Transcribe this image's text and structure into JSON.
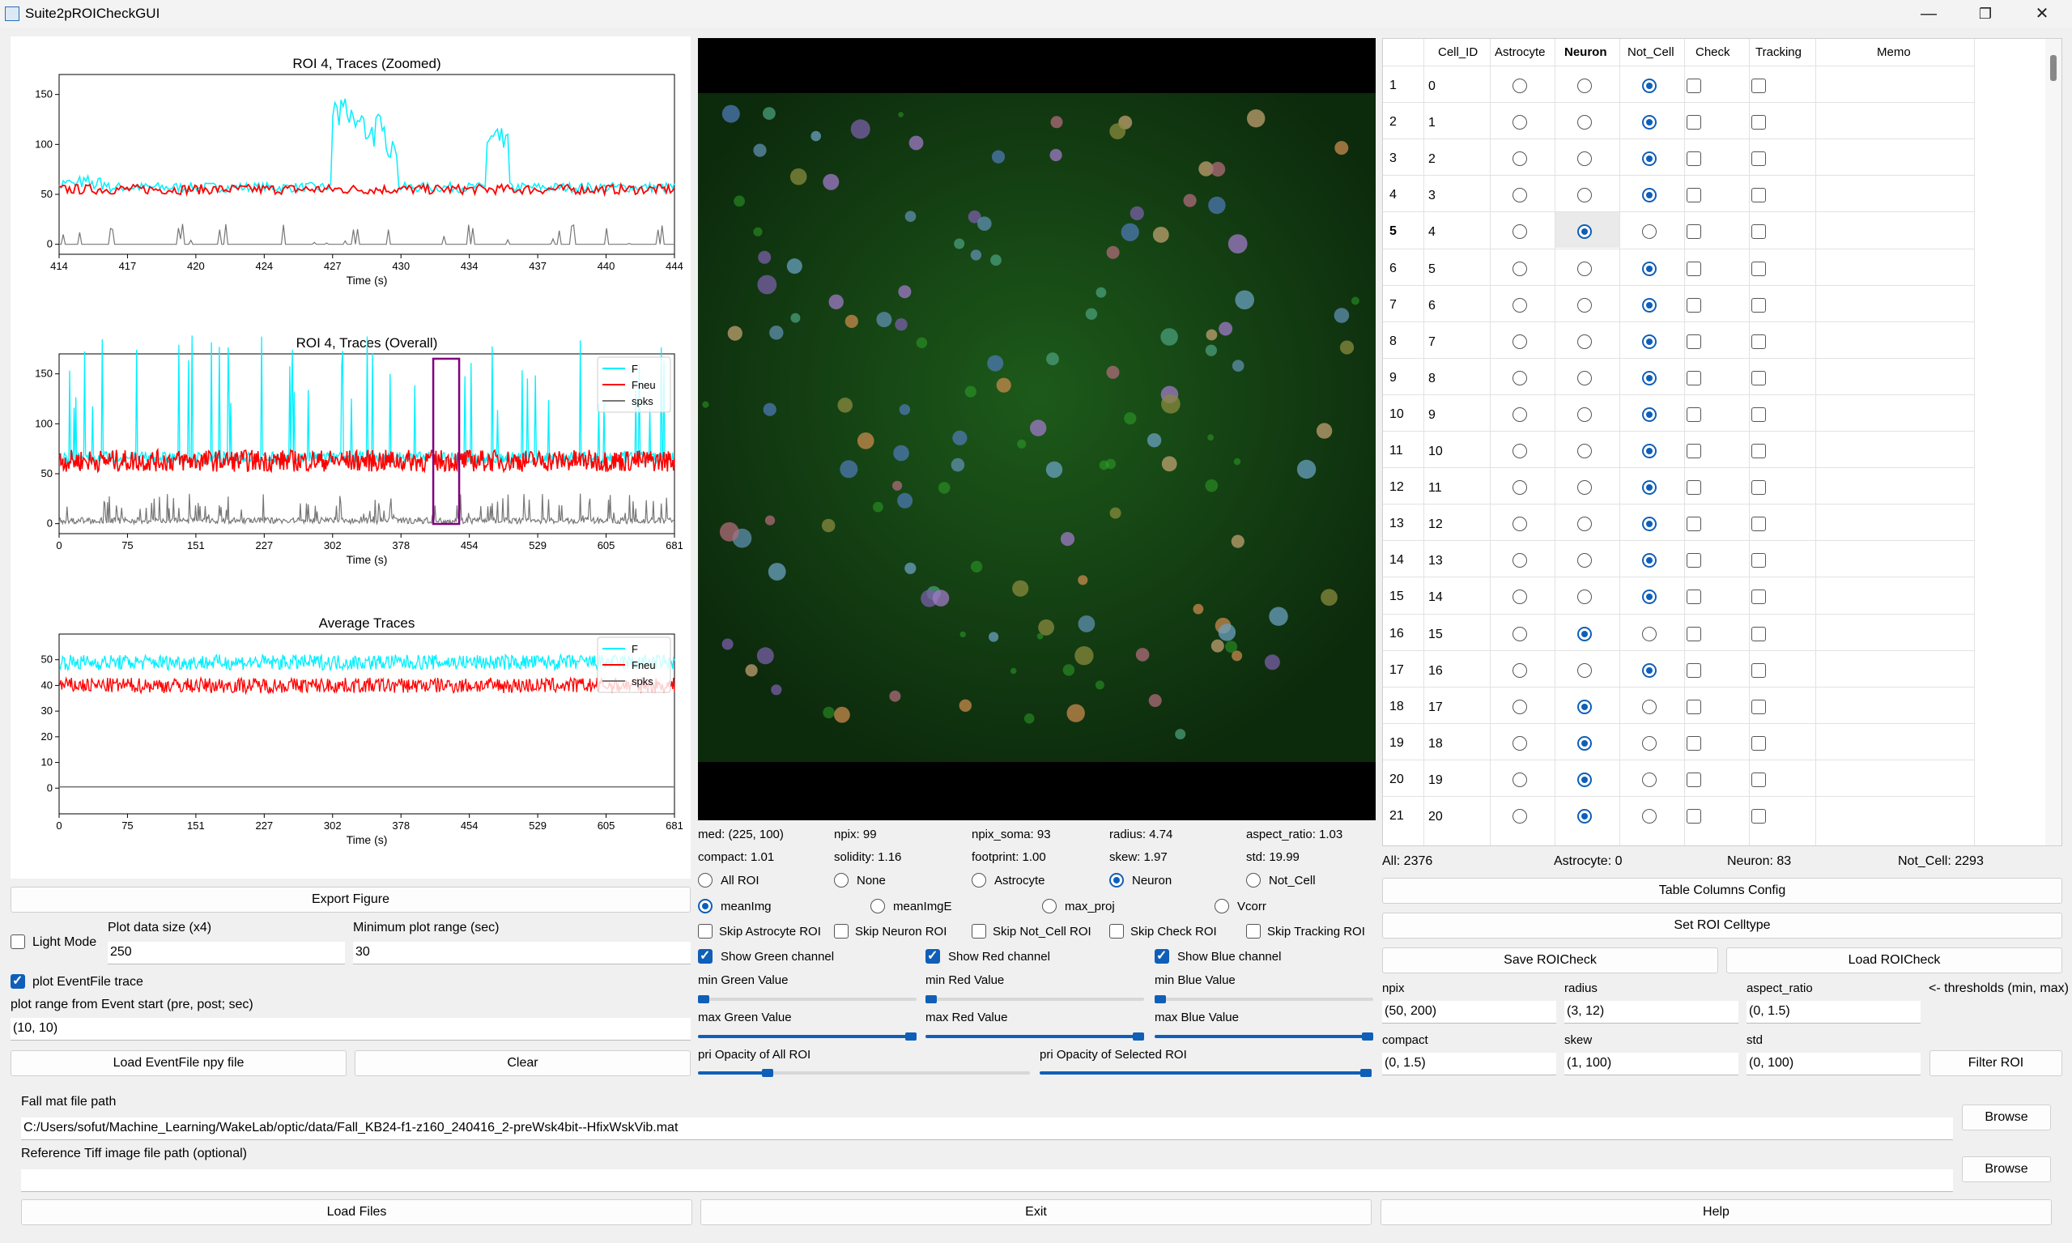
{
  "window": {
    "title": "Suite2pROICheckGUI",
    "min_icon": "minimize-icon",
    "max_icon": "maximize-icon",
    "close_icon": "close-icon",
    "min_glyph": "—",
    "max_glyph": "❐",
    "close_glyph": "✕"
  },
  "colors": {
    "f": "#00f0ff",
    "fneu": "#ff0000",
    "spks": "#777777",
    "accent": "#0f5fb8",
    "roi_box": "#800080"
  },
  "plots": {
    "zoomed": {
      "title": "ROI 4, Traces (Zoomed)",
      "xlabel": "Time (s)",
      "xticks": [
        "414",
        "417",
        "420",
        "424",
        "427",
        "430",
        "434",
        "437",
        "440",
        "444"
      ],
      "yticks": [
        "0",
        "50",
        "100",
        "150"
      ]
    },
    "overall": {
      "title": "ROI 4, Traces (Overall)",
      "xlabel": "Time (s)",
      "xticks": [
        "0",
        "75",
        "151",
        "227",
        "302",
        "378",
        "454",
        "529",
        "605",
        "681"
      ],
      "yticks": [
        "0",
        "50",
        "100",
        "150"
      ],
      "legend": [
        "F",
        "Fneu",
        "spks"
      ]
    },
    "average": {
      "title": "Average Traces",
      "xlabel": "Time (s)",
      "xticks": [
        "0",
        "75",
        "151",
        "227",
        "302",
        "378",
        "454",
        "529",
        "605",
        "681"
      ],
      "yticks": [
        "0",
        "10",
        "20",
        "30",
        "40",
        "50"
      ],
      "legend": [
        "F",
        "Fneu",
        "spks"
      ]
    }
  },
  "left_controls": {
    "export_label": "Export Figure",
    "light_mode_label": "Light Mode",
    "plot_size_label": "Plot data size (x4)",
    "plot_size_value": "250",
    "min_range_label": "Minimum plot range (sec)",
    "min_range_value": "30",
    "plot_event_label": "plot EventFile trace",
    "event_range_label": "plot range from Event start (pre, post; sec)",
    "event_range_value": "(10, 10)",
    "load_event_label": "Load EventFile npy file",
    "clear_label": "Clear"
  },
  "stats": {
    "row1": [
      "med: (225, 100)",
      "npix: 99",
      "npix_soma: 93",
      "radius: 4.74",
      "aspect_ratio: 1.03"
    ],
    "row2": [
      "compact: 1.01",
      "solidity: 1.16",
      "footprint: 1.00",
      "skew: 1.97",
      "std: 19.99"
    ]
  },
  "roi_display": {
    "options": [
      "All ROI",
      "None",
      "Astrocyte",
      "Neuron",
      "Not_Cell"
    ],
    "selected": 3
  },
  "bg_image": {
    "options": [
      "meanImg",
      "meanImgE",
      "max_proj",
      "Vcorr"
    ],
    "selected": 0
  },
  "skip": [
    "Skip Astrocyte ROI",
    "Skip Neuron ROI",
    "Skip Not_Cell ROI",
    "Skip Check ROI",
    "Skip Tracking ROI"
  ],
  "channels": [
    "Show Green channel",
    "Show Red channel",
    "Show Blue channel"
  ],
  "sliders": {
    "min": [
      "min Green Value",
      "min Red Value",
      "min Blue Value"
    ],
    "max": [
      "max Green Value",
      "max Red Value",
      "max Blue Value"
    ],
    "min_values": [
      0.0,
      0.0,
      0.0
    ],
    "max_values": [
      1.0,
      1.0,
      1.0
    ],
    "opacity": [
      "pri Opacity of All ROI",
      "pri Opacity of Selected ROI"
    ],
    "opacity_values": [
      0.2,
      1.0
    ]
  },
  "table": {
    "headers": [
      "Cell_ID",
      "Astrocyte",
      "Neuron",
      "Not_Cell",
      "Check",
      "Tracking",
      "Memo"
    ],
    "rows": [
      {
        "n": "1",
        "id": "0",
        "type": 2
      },
      {
        "n": "2",
        "id": "1",
        "type": 2
      },
      {
        "n": "3",
        "id": "2",
        "type": 2
      },
      {
        "n": "4",
        "id": "3",
        "type": 2
      },
      {
        "n": "5",
        "id": "4",
        "type": 1
      },
      {
        "n": "6",
        "id": "5",
        "type": 2
      },
      {
        "n": "7",
        "id": "6",
        "type": 2
      },
      {
        "n": "8",
        "id": "7",
        "type": 2
      },
      {
        "n": "9",
        "id": "8",
        "type": 2
      },
      {
        "n": "10",
        "id": "9",
        "type": 2
      },
      {
        "n": "11",
        "id": "10",
        "type": 2
      },
      {
        "n": "12",
        "id": "11",
        "type": 2
      },
      {
        "n": "13",
        "id": "12",
        "type": 2
      },
      {
        "n": "14",
        "id": "13",
        "type": 2
      },
      {
        "n": "15",
        "id": "14",
        "type": 2
      },
      {
        "n": "16",
        "id": "15",
        "type": 1
      },
      {
        "n": "17",
        "id": "16",
        "type": 2
      },
      {
        "n": "18",
        "id": "17",
        "type": 1
      },
      {
        "n": "19",
        "id": "18",
        "type": 1
      },
      {
        "n": "20",
        "id": "19",
        "type": 1
      },
      {
        "n": "21",
        "id": "20",
        "type": 1
      }
    ]
  },
  "counts": {
    "all": "All: 2376",
    "astrocyte": "Astrocyte: 0",
    "neuron": "Neuron: 83",
    "not_cell": "Not_Cell: 2293"
  },
  "right_controls": {
    "table_config": "Table Columns Config",
    "set_celltype": "Set ROI Celltype",
    "save": "Save ROICheck",
    "load": "Load ROICheck",
    "thresh_note": "<- thresholds (min, max)",
    "filter": "Filter ROI",
    "thresholds": [
      {
        "label": "npix",
        "value": "(50, 200)"
      },
      {
        "label": "radius",
        "value": "(3, 12)"
      },
      {
        "label": "aspect_ratio",
        "value": "(0, 1.5)"
      },
      {
        "label": "compact",
        "value": "(0, 1.5)"
      },
      {
        "label": "skew",
        "value": "(1, 100)"
      },
      {
        "label": "std",
        "value": "(0, 100)"
      }
    ]
  },
  "files": {
    "fall_label": "Fall mat file path",
    "fall_value": "C:/Users/sofut/Machine_Learning/WakeLab/optic/data/Fall_KB24-f1-z160_240416_2-preWsk4bit--HfixWskVib.mat",
    "tiff_label": "Reference Tiff image file path (optional)",
    "tiff_value": "",
    "browse": "Browse",
    "load_files": "Load Files",
    "exit": "Exit",
    "help": "Help"
  }
}
